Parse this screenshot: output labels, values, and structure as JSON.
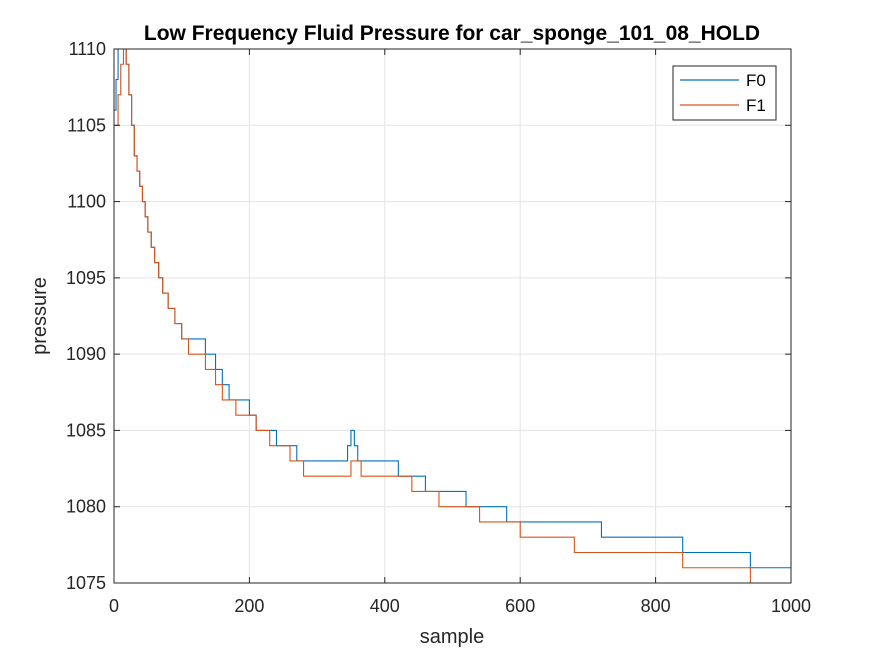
{
  "chart_data": {
    "type": "line",
    "title": "Low Frequency Fluid Pressure for car_sponge_101_08_HOLD",
    "xlabel": "sample",
    "ylabel": "pressure",
    "xlim": [
      0,
      1000
    ],
    "ylim": [
      1075,
      1110
    ],
    "xticks": [
      "0",
      "200",
      "400",
      "600",
      "800",
      "1000"
    ],
    "yticks": [
      "1075",
      "1080",
      "1085",
      "1090",
      "1095",
      "1100",
      "1105",
      "1110"
    ],
    "grid": true,
    "legend": "top-right",
    "series": [
      {
        "name": "F0",
        "color": "#0072BD",
        "x": [
          0,
          3,
          6,
          10,
          14,
          18,
          22,
          26,
          30,
          34,
          38,
          42,
          46,
          50,
          55,
          60,
          66,
          72,
          80,
          90,
          100,
          110,
          120,
          135,
          150,
          160,
          170,
          180,
          190,
          200,
          210,
          220,
          230,
          240,
          250,
          260,
          270,
          280,
          300,
          320,
          340,
          345,
          350,
          355,
          360,
          365,
          380,
          400,
          420,
          440,
          460,
          480,
          500,
          520,
          540,
          560,
          580,
          600,
          620,
          640,
          660,
          680,
          700,
          720,
          740,
          760,
          780,
          800,
          820,
          840,
          860,
          880,
          900,
          920,
          940,
          960,
          980,
          1000
        ],
        "y": [
          1106,
          1108,
          1110,
          1111,
          1110,
          1109,
          1107,
          1105,
          1103,
          1102,
          1101,
          1100,
          1099,
          1098,
          1097,
          1096,
          1095,
          1094,
          1093,
          1092,
          1091,
          1091,
          1091,
          1090,
          1089,
          1088,
          1087,
          1087,
          1087,
          1086,
          1085,
          1085,
          1085,
          1084,
          1084,
          1084,
          1083,
          1083,
          1083,
          1083,
          1083,
          1084,
          1085,
          1084,
          1083,
          1083,
          1083,
          1083,
          1082,
          1082,
          1081,
          1081,
          1081,
          1080,
          1080,
          1080,
          1079,
          1079,
          1079,
          1079,
          1079,
          1079,
          1079,
          1078,
          1078,
          1078,
          1078,
          1078,
          1078,
          1077,
          1077,
          1077,
          1077,
          1077,
          1076,
          1076,
          1076,
          1076
        ]
      },
      {
        "name": "F1",
        "color": "#D95319",
        "x": [
          0,
          3,
          6,
          10,
          14,
          18,
          22,
          26,
          30,
          34,
          38,
          42,
          46,
          50,
          55,
          60,
          66,
          72,
          80,
          90,
          100,
          110,
          120,
          135,
          150,
          160,
          170,
          180,
          190,
          200,
          210,
          220,
          230,
          240,
          250,
          260,
          270,
          280,
          300,
          320,
          340,
          345,
          350,
          355,
          360,
          365,
          380,
          400,
          420,
          440,
          460,
          480,
          500,
          520,
          540,
          560,
          580,
          600,
          620,
          640,
          660,
          680,
          700,
          720,
          740,
          760,
          780,
          800,
          820,
          840,
          860,
          880,
          900,
          920,
          940,
          960,
          980,
          1000
        ],
        "y": [
          1105,
          1105,
          1107,
          1109,
          1110,
          1109,
          1107,
          1105,
          1103,
          1102,
          1101,
          1100,
          1099,
          1098,
          1097,
          1096,
          1095,
          1094,
          1093,
          1092,
          1091,
          1090,
          1090,
          1089,
          1088,
          1087,
          1087,
          1086,
          1086,
          1086,
          1085,
          1085,
          1084,
          1084,
          1084,
          1083,
          1083,
          1082,
          1082,
          1082,
          1082,
          1082,
          1083,
          1083,
          1083,
          1082,
          1082,
          1082,
          1082,
          1081,
          1081,
          1080,
          1080,
          1080,
          1079,
          1079,
          1079,
          1078,
          1078,
          1078,
          1078,
          1077,
          1077,
          1077,
          1077,
          1077,
          1077,
          1077,
          1077,
          1076,
          1076,
          1076,
          1076,
          1076,
          1075,
          1075,
          1075,
          1075
        ]
      }
    ]
  }
}
